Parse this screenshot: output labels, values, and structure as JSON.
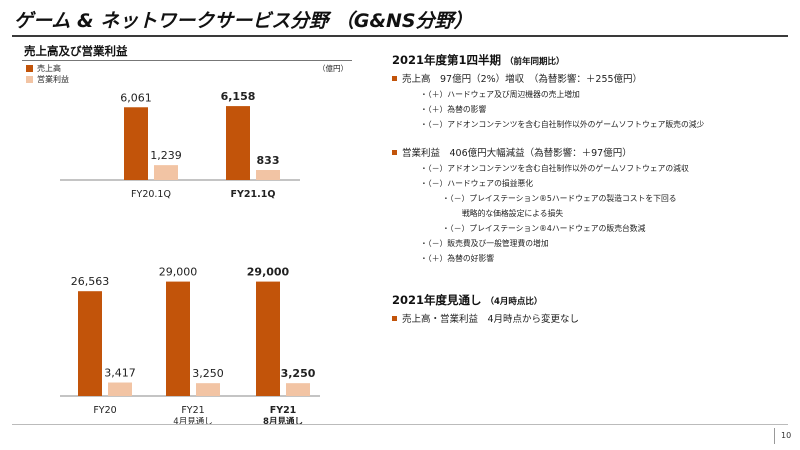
{
  "page": {
    "title": "ゲーム & ネットワークサービス分野 （G&NS分野）",
    "page_number": "10"
  },
  "colors": {
    "accent": "#c2540a",
    "sales": "#c2540a",
    "profit": "#f2c4a4"
  },
  "left": {
    "heading": "売上高及び営業利益",
    "unit": "（億円）",
    "legend": [
      "売上高",
      "営業利益"
    ]
  },
  "chart_data": [
    {
      "type": "bar",
      "title": "売上高及び営業利益",
      "ylabel": "（億円）",
      "categories": [
        "FY20.1Q",
        "FY21.1Q"
      ],
      "series": [
        {
          "name": "売上高",
          "values": [
            6061,
            6158
          ],
          "labels": [
            "6,061",
            "6,158"
          ]
        },
        {
          "name": "営業利益",
          "values": [
            1239,
            833
          ],
          "labels": [
            "1,239",
            "833"
          ]
        }
      ],
      "bold_categories": [
        false,
        true
      ],
      "ylim": [
        0,
        7500
      ]
    },
    {
      "type": "bar",
      "categories": [
        "FY20",
        "FY21|4月見通し",
        "FY21|8月見通し"
      ],
      "series": [
        {
          "name": "売上高",
          "values": [
            26563,
            29000,
            29000
          ],
          "labels": [
            "26,563",
            "29,000",
            "29,000"
          ]
        },
        {
          "name": "営業利益",
          "values": [
            3417,
            3250,
            3250
          ],
          "labels": [
            "3,417",
            "3,250",
            "3,250"
          ]
        }
      ],
      "bold_categories": [
        false,
        false,
        true
      ],
      "ylim": [
        0,
        36500
      ]
    }
  ],
  "right": {
    "q1": {
      "title": "2021年度第1四半期",
      "note": "（前年同期比）",
      "sales_bullet": "売上高　97億円（2%）増収　（為替影響：＋255億円）",
      "sales_items": [
        "・（＋）ハードウェア及び周辺機器の売上増加",
        "・（＋）為替の影響",
        "・（－）アドオンコンテンツを含む自社制作以外のゲームソフトウェア販売の減少"
      ],
      "op_bullet": "営業利益　406億円大幅減益（為替影響：＋97億円）",
      "op_item1": "・（－）アドオンコンテンツを含む自社制作以外のゲームソフトウェアの減収",
      "op_item2": "・（－）ハードウェアの損益悪化",
      "op_sub1": "・（－）プレイステーション®5ハードウェアの製造コストを下回る",
      "op_sub1_cont": "戦略的な価格設定による損失",
      "op_sub2": "・（－）プレイステーション®4ハードウェアの販売台数減",
      "op_item3": "・（－）販売費及び一般管理費の増加",
      "op_item4": "・（＋）為替の好影響"
    },
    "fy": {
      "title": "2021年度見通し",
      "note": "（4月時点比）",
      "bullet": "売上高・営業利益　4月時点から変更なし"
    }
  }
}
